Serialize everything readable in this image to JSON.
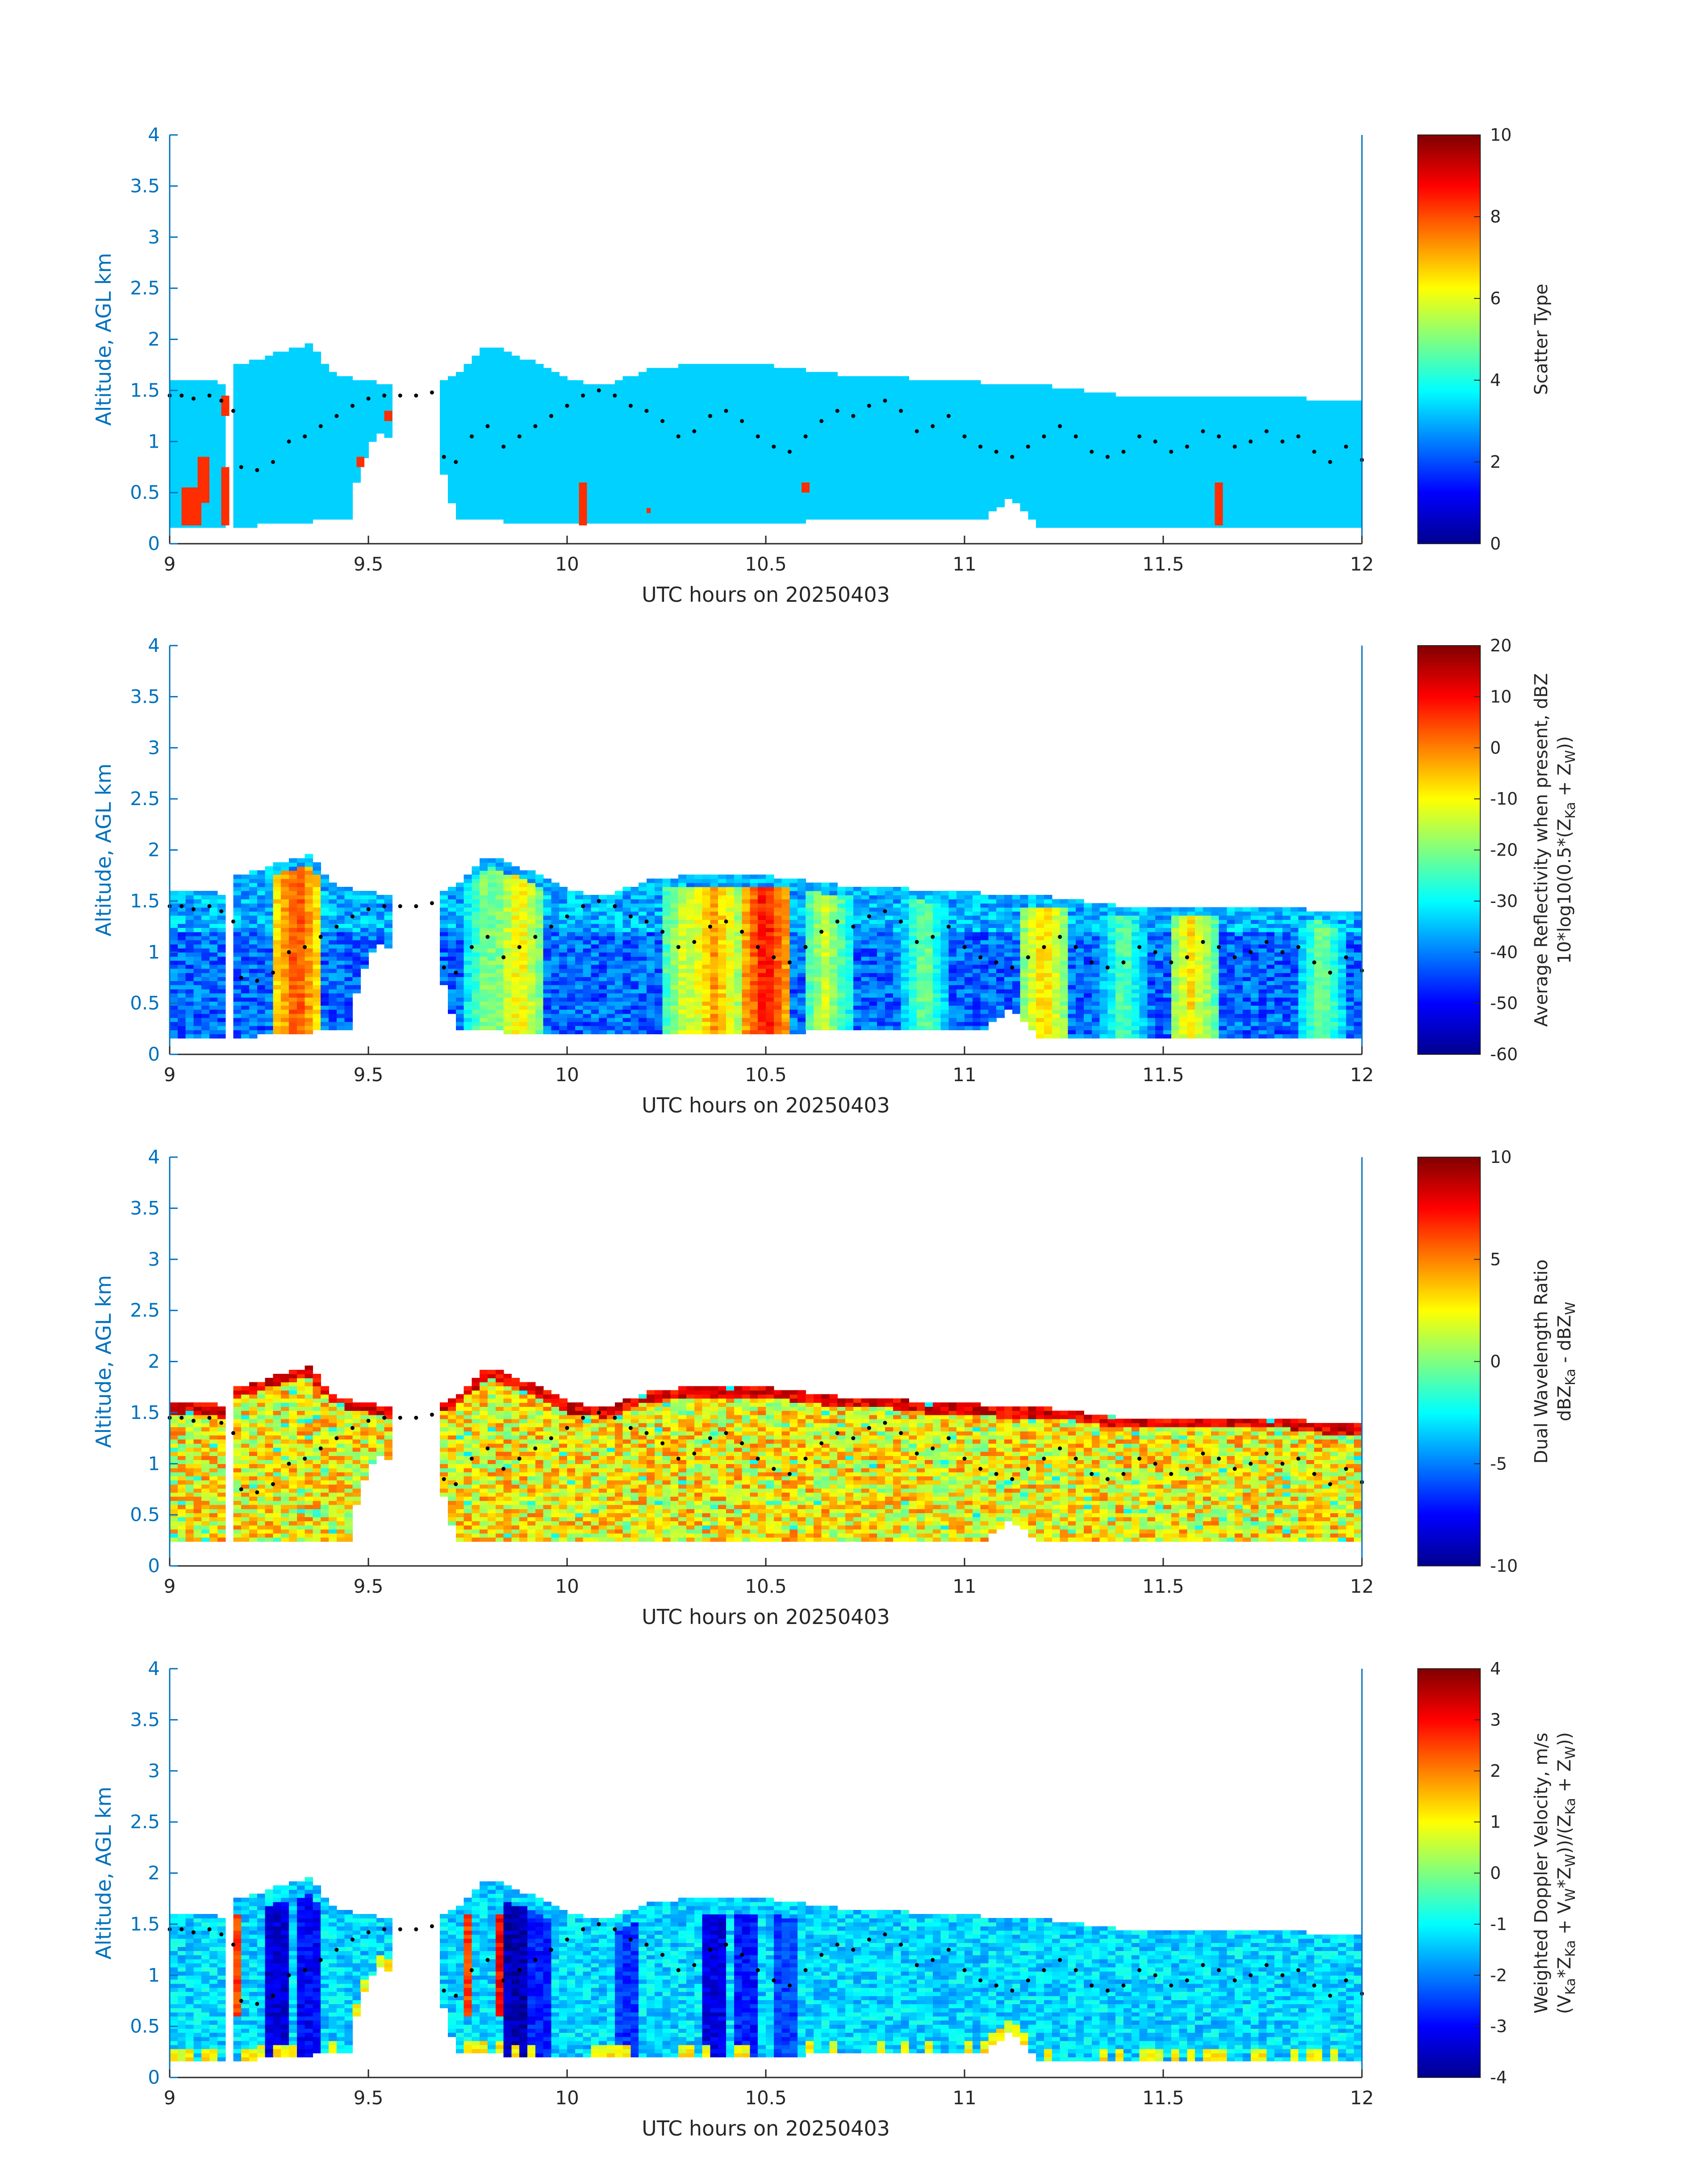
{
  "figure": {
    "xlabel": "UTC hours on 20250403",
    "ylabel": "Altitude, AGL km",
    "xlim": [
      9,
      12
    ],
    "ylim": [
      0,
      4
    ],
    "xticks": [
      "9",
      "9.5",
      "10",
      "10.5",
      "11",
      "11.5",
      "12"
    ],
    "yticks": [
      "0",
      "0.5",
      "1",
      "1.5",
      "2",
      "2.5",
      "3",
      "3.5",
      "4"
    ],
    "colormap": "jet",
    "axis_color": "#0072bd"
  },
  "chart_data": [
    {
      "type": "heatmap",
      "panel": "scatter-type",
      "xlabel": "UTC hours on 20250403",
      "ylabel": "Altitude, AGL km",
      "xlim": [
        9,
        12
      ],
      "ylim": [
        0,
        4
      ],
      "colorbar": {
        "label_lines": [
          "Scatter Type"
        ],
        "clim": [
          0,
          10
        ],
        "ticks": [
          "0",
          "2",
          "4",
          "6",
          "8",
          "10"
        ]
      },
      "base_value": 3.3,
      "cloud_top_km": [
        [
          9.0,
          1.6
        ],
        [
          9.1,
          1.6
        ],
        [
          9.15,
          1.5
        ],
        [
          9.17,
          1.75
        ],
        [
          9.3,
          1.9
        ],
        [
          9.35,
          1.95
        ],
        [
          9.42,
          1.65
        ],
        [
          9.5,
          1.6
        ],
        [
          9.55,
          1.55
        ],
        [
          9.6,
          1.6
        ],
        [
          9.67,
          1.58
        ],
        [
          9.72,
          1.65
        ],
        [
          9.8,
          1.95
        ],
        [
          9.9,
          1.8
        ],
        [
          10.0,
          1.6
        ],
        [
          10.1,
          1.55
        ],
        [
          10.2,
          1.7
        ],
        [
          10.3,
          1.75
        ],
        [
          10.4,
          1.75
        ],
        [
          10.5,
          1.75
        ],
        [
          10.6,
          1.7
        ],
        [
          10.7,
          1.65
        ],
        [
          10.8,
          1.65
        ],
        [
          10.9,
          1.6
        ],
        [
          11.0,
          1.6
        ],
        [
          11.1,
          1.55
        ],
        [
          11.2,
          1.55
        ],
        [
          11.3,
          1.5
        ],
        [
          11.4,
          1.45
        ],
        [
          11.5,
          1.45
        ],
        [
          11.6,
          1.45
        ],
        [
          11.7,
          1.45
        ],
        [
          11.8,
          1.45
        ],
        [
          11.9,
          1.4
        ],
        [
          12.0,
          1.4
        ]
      ],
      "cloud_base_km": [
        [
          9.0,
          0.18
        ],
        [
          9.15,
          0.18
        ],
        [
          9.22,
          0.18
        ],
        [
          9.45,
          0.25
        ],
        [
          9.48,
          0.75
        ],
        [
          9.52,
          1.1
        ],
        [
          9.68,
          0.8
        ],
        [
          9.72,
          0.25
        ],
        [
          10.0,
          0.18
        ],
        [
          11.05,
          0.25
        ],
        [
          11.12,
          0.45
        ],
        [
          11.18,
          0.18
        ],
        [
          12.0,
          0.18
        ]
      ],
      "gaps": [
        [
          9.13,
          9.16
        ],
        [
          9.56,
          9.68
        ]
      ],
      "rain_patches": [
        {
          "x": [
            9.03,
            9.08
          ],
          "y": [
            0.18,
            0.55
          ],
          "value": 8.3
        },
        {
          "x": [
            9.07,
            9.1
          ],
          "y": [
            0.4,
            0.85
          ],
          "value": 8.3
        },
        {
          "x": [
            9.13,
            9.15
          ],
          "y": [
            0.18,
            0.75
          ],
          "value": 8.3
        },
        {
          "x": [
            9.13,
            9.15
          ],
          "y": [
            1.25,
            1.45
          ],
          "value": 8.3
        },
        {
          "x": [
            9.47,
            9.49
          ],
          "y": [
            0.75,
            0.85
          ],
          "value": 8.3
        },
        {
          "x": [
            9.54,
            9.56
          ],
          "y": [
            1.2,
            1.3
          ],
          "value": 8.3
        },
        {
          "x": [
            10.03,
            10.05
          ],
          "y": [
            0.18,
            0.6
          ],
          "value": 8.3
        },
        {
          "x": [
            10.2,
            10.21
          ],
          "y": [
            0.3,
            0.35
          ],
          "value": 8.3
        },
        {
          "x": [
            10.59,
            10.61
          ],
          "y": [
            0.5,
            0.6
          ],
          "value": 8.3
        },
        {
          "x": [
            11.63,
            11.65
          ],
          "y": [
            0.18,
            0.6
          ],
          "value": 8.3
        }
      ]
    },
    {
      "type": "heatmap",
      "panel": "reflectivity",
      "xlabel": "UTC hours on 20250403",
      "ylabel": "Altitude, AGL km",
      "xlim": [
        9,
        12
      ],
      "ylim": [
        0,
        4
      ],
      "colorbar": {
        "label_lines": [
          "Average Reflectivity when present, dBZ",
          "10*log10(0.5*(Z",
          "Ka",
          " + Z",
          "W",
          "))"
        ],
        "clim": [
          -60,
          20
        ],
        "ticks": [
          "-60",
          "-50",
          "-40",
          "-30",
          "-20",
          "-10",
          "0",
          "10",
          "20"
        ]
      },
      "cloud_top_km": [
        [
          9.0,
          1.6
        ],
        [
          9.1,
          1.6
        ],
        [
          9.15,
          1.5
        ],
        [
          9.17,
          1.75
        ],
        [
          9.3,
          1.9
        ],
        [
          9.35,
          1.95
        ],
        [
          9.42,
          1.65
        ],
        [
          9.5,
          1.6
        ],
        [
          9.55,
          1.55
        ],
        [
          9.6,
          1.6
        ],
        [
          9.67,
          1.58
        ],
        [
          9.72,
          1.65
        ],
        [
          9.8,
          1.95
        ],
        [
          9.9,
          1.8
        ],
        [
          10.0,
          1.6
        ],
        [
          10.1,
          1.55
        ],
        [
          10.2,
          1.7
        ],
        [
          10.3,
          1.75
        ],
        [
          10.4,
          1.75
        ],
        [
          10.5,
          1.75
        ],
        [
          10.6,
          1.7
        ],
        [
          10.7,
          1.65
        ],
        [
          10.8,
          1.65
        ],
        [
          10.9,
          1.6
        ],
        [
          11.0,
          1.6
        ],
        [
          11.1,
          1.55
        ],
        [
          11.2,
          1.55
        ],
        [
          11.3,
          1.5
        ],
        [
          11.4,
          1.45
        ],
        [
          11.5,
          1.45
        ],
        [
          11.6,
          1.45
        ],
        [
          11.7,
          1.45
        ],
        [
          11.8,
          1.45
        ],
        [
          11.9,
          1.4
        ],
        [
          12.0,
          1.4
        ]
      ],
      "cloud_base_km": [
        [
          9.0,
          0.18
        ],
        [
          9.15,
          0.18
        ],
        [
          9.22,
          0.18
        ],
        [
          9.45,
          0.25
        ],
        [
          9.48,
          0.75
        ],
        [
          9.52,
          1.1
        ],
        [
          9.68,
          0.8
        ],
        [
          9.72,
          0.25
        ],
        [
          10.0,
          0.18
        ],
        [
          11.05,
          0.25
        ],
        [
          11.12,
          0.45
        ],
        [
          11.18,
          0.18
        ],
        [
          12.0,
          0.18
        ]
      ],
      "gaps": [
        [
          9.13,
          9.16
        ],
        [
          9.56,
          9.68
        ]
      ],
      "cores_dBZ": [
        {
          "x": 9.32,
          "value": 5
        },
        {
          "x": 9.88,
          "value": -8
        },
        {
          "x": 10.37,
          "value": -2
        },
        {
          "x": 10.5,
          "value": 10
        },
        {
          "x": 10.3,
          "value": -12
        },
        {
          "x": 10.65,
          "value": -14
        },
        {
          "x": 11.2,
          "value": -6
        },
        {
          "x": 11.57,
          "value": -8
        },
        {
          "x": 9.8,
          "value": -18
        },
        {
          "x": 10.9,
          "value": -20
        },
        {
          "x": 11.4,
          "value": -22
        },
        {
          "x": 11.9,
          "value": -20
        }
      ],
      "background_dBZ": -42
    },
    {
      "type": "heatmap",
      "panel": "dual-wavelength-ratio",
      "xlabel": "UTC hours on 20250403",
      "ylabel": "Altitude, AGL km",
      "xlim": [
        9,
        12
      ],
      "ylim": [
        0,
        4
      ],
      "colorbar": {
        "label_lines": [
          "Dual Wavelength Ratio",
          "dBZ",
          "Ka",
          " - dBZ",
          "W"
        ],
        "clim": [
          -10,
          10
        ],
        "ticks": [
          "-10",
          "-5",
          "0",
          "5",
          "10"
        ]
      },
      "cloud_top_km": [
        [
          9.0,
          1.6
        ],
        [
          9.1,
          1.6
        ],
        [
          9.15,
          1.5
        ],
        [
          9.17,
          1.75
        ],
        [
          9.3,
          1.9
        ],
        [
          9.35,
          1.95
        ],
        [
          9.42,
          1.65
        ],
        [
          9.5,
          1.6
        ],
        [
          9.55,
          1.55
        ],
        [
          9.6,
          1.6
        ],
        [
          9.67,
          1.58
        ],
        [
          9.72,
          1.65
        ],
        [
          9.8,
          1.95
        ],
        [
          9.9,
          1.8
        ],
        [
          10.0,
          1.6
        ],
        [
          10.1,
          1.55
        ],
        [
          10.2,
          1.7
        ],
        [
          10.3,
          1.75
        ],
        [
          10.4,
          1.75
        ],
        [
          10.5,
          1.75
        ],
        [
          10.6,
          1.7
        ],
        [
          10.7,
          1.65
        ],
        [
          10.8,
          1.65
        ],
        [
          10.9,
          1.6
        ],
        [
          11.0,
          1.6
        ],
        [
          11.1,
          1.55
        ],
        [
          11.2,
          1.55
        ],
        [
          11.3,
          1.5
        ],
        [
          11.4,
          1.45
        ],
        [
          11.5,
          1.45
        ],
        [
          11.6,
          1.45
        ],
        [
          11.7,
          1.45
        ],
        [
          11.8,
          1.45
        ],
        [
          11.9,
          1.4
        ],
        [
          12.0,
          1.4
        ]
      ],
      "cloud_base_km": [
        [
          9.0,
          0.25
        ],
        [
          9.15,
          0.25
        ],
        [
          9.45,
          0.25
        ],
        [
          9.48,
          0.75
        ],
        [
          9.52,
          1.1
        ],
        [
          9.68,
          0.8
        ],
        [
          9.72,
          0.25
        ],
        [
          11.05,
          0.25
        ],
        [
          11.12,
          0.45
        ],
        [
          11.18,
          0.25
        ],
        [
          12.0,
          0.25
        ]
      ],
      "gaps": [
        [
          9.13,
          9.16
        ],
        [
          9.56,
          9.68
        ]
      ],
      "typical_dB": 2.5,
      "top_edge_dB": 8
    },
    {
      "type": "heatmap",
      "panel": "doppler-velocity",
      "xlabel": "UTC hours on 20250403",
      "ylabel": "Altitude, AGL km",
      "xlim": [
        9,
        12
      ],
      "ylim": [
        0,
        4
      ],
      "colorbar": {
        "label_lines": [
          "Weighted Doppler Velocity, m/s",
          "(V",
          "Ka",
          "*Z",
          "Ka",
          " + V",
          "W",
          "*Z",
          "W",
          "))/(Z",
          "Ka",
          " + Z",
          "W",
          "))"
        ],
        "clim": [
          -4,
          4
        ],
        "ticks": [
          "-4",
          "-3",
          "-2",
          "-1",
          "0",
          "1",
          "2",
          "3",
          "4"
        ]
      },
      "cloud_top_km": [
        [
          9.0,
          1.6
        ],
        [
          9.1,
          1.6
        ],
        [
          9.15,
          1.5
        ],
        [
          9.17,
          1.75
        ],
        [
          9.3,
          1.9
        ],
        [
          9.35,
          1.95
        ],
        [
          9.42,
          1.65
        ],
        [
          9.5,
          1.6
        ],
        [
          9.55,
          1.55
        ],
        [
          9.6,
          1.6
        ],
        [
          9.67,
          1.58
        ],
        [
          9.72,
          1.65
        ],
        [
          9.8,
          1.95
        ],
        [
          9.9,
          1.8
        ],
        [
          10.0,
          1.6
        ],
        [
          10.1,
          1.55
        ],
        [
          10.2,
          1.7
        ],
        [
          10.3,
          1.75
        ],
        [
          10.4,
          1.75
        ],
        [
          10.5,
          1.75
        ],
        [
          10.6,
          1.7
        ],
        [
          10.7,
          1.65
        ],
        [
          10.8,
          1.65
        ],
        [
          10.9,
          1.6
        ],
        [
          11.0,
          1.6
        ],
        [
          11.1,
          1.55
        ],
        [
          11.2,
          1.55
        ],
        [
          11.3,
          1.5
        ],
        [
          11.4,
          1.45
        ],
        [
          11.5,
          1.45
        ],
        [
          11.6,
          1.45
        ],
        [
          11.7,
          1.45
        ],
        [
          11.8,
          1.45
        ],
        [
          11.9,
          1.4
        ],
        [
          12.0,
          1.4
        ]
      ],
      "cloud_base_km": [
        [
          9.0,
          0.18
        ],
        [
          9.15,
          0.18
        ],
        [
          9.22,
          0.18
        ],
        [
          9.45,
          0.25
        ],
        [
          9.48,
          0.75
        ],
        [
          9.52,
          1.1
        ],
        [
          9.68,
          0.8
        ],
        [
          9.72,
          0.25
        ],
        [
          10.0,
          0.18
        ],
        [
          11.05,
          0.25
        ],
        [
          11.12,
          0.45
        ],
        [
          11.18,
          0.18
        ],
        [
          12.0,
          0.18
        ]
      ],
      "gaps": [
        [
          9.13,
          9.16
        ],
        [
          9.56,
          9.68
        ]
      ],
      "typical_ms": -1.3,
      "fall_streaks_ms": [
        {
          "x": 9.27,
          "value": -3.3
        },
        {
          "x": 9.35,
          "value": -3.0
        },
        {
          "x": 9.87,
          "value": -3.6
        },
        {
          "x": 9.93,
          "value": -2.8
        },
        {
          "x": 10.15,
          "value": -2.6
        },
        {
          "x": 10.37,
          "value": -3.2
        },
        {
          "x": 10.45,
          "value": -2.8
        },
        {
          "x": 10.55,
          "value": -2.5
        }
      ],
      "updrafts_ms": [
        {
          "x": 9.17,
          "value": 2.5
        },
        {
          "x": 9.75,
          "value": 2.5
        },
        {
          "x": 9.83,
          "value": 3.0
        }
      ]
    }
  ],
  "cloud_base_dots_km": [
    [
      9.0,
      1.45
    ],
    [
      9.03,
      1.45
    ],
    [
      9.06,
      1.42
    ],
    [
      9.1,
      1.45
    ],
    [
      9.13,
      1.4
    ],
    [
      9.16,
      1.3
    ],
    [
      9.18,
      0.75
    ],
    [
      9.22,
      0.72
    ],
    [
      9.26,
      0.8
    ],
    [
      9.3,
      1.0
    ],
    [
      9.34,
      1.05
    ],
    [
      9.38,
      1.15
    ],
    [
      9.42,
      1.25
    ],
    [
      9.46,
      1.35
    ],
    [
      9.5,
      1.42
    ],
    [
      9.54,
      1.45
    ],
    [
      9.58,
      1.45
    ],
    [
      9.62,
      1.45
    ],
    [
      9.66,
      1.48
    ],
    [
      9.69,
      0.85
    ],
    [
      9.72,
      0.8
    ],
    [
      9.76,
      1.05
    ],
    [
      9.8,
      1.15
    ],
    [
      9.84,
      0.95
    ],
    [
      9.88,
      1.05
    ],
    [
      9.92,
      1.15
    ],
    [
      9.96,
      1.25
    ],
    [
      10.0,
      1.35
    ],
    [
      10.04,
      1.45
    ],
    [
      10.08,
      1.5
    ],
    [
      10.12,
      1.45
    ],
    [
      10.16,
      1.35
    ],
    [
      10.2,
      1.3
    ],
    [
      10.24,
      1.2
    ],
    [
      10.28,
      1.05
    ],
    [
      10.32,
      1.1
    ],
    [
      10.36,
      1.25
    ],
    [
      10.4,
      1.3
    ],
    [
      10.44,
      1.2
    ],
    [
      10.48,
      1.05
    ],
    [
      10.52,
      0.95
    ],
    [
      10.56,
      0.9
    ],
    [
      10.6,
      1.05
    ],
    [
      10.64,
      1.2
    ],
    [
      10.68,
      1.3
    ],
    [
      10.72,
      1.25
    ],
    [
      10.76,
      1.35
    ],
    [
      10.8,
      1.4
    ],
    [
      10.84,
      1.3
    ],
    [
      10.88,
      1.1
    ],
    [
      10.92,
      1.15
    ],
    [
      10.96,
      1.25
    ],
    [
      11.0,
      1.05
    ],
    [
      11.04,
      0.95
    ],
    [
      11.08,
      0.9
    ],
    [
      11.12,
      0.85
    ],
    [
      11.16,
      0.95
    ],
    [
      11.2,
      1.05
    ],
    [
      11.24,
      1.15
    ],
    [
      11.28,
      1.05
    ],
    [
      11.32,
      0.9
    ],
    [
      11.36,
      0.85
    ],
    [
      11.4,
      0.9
    ],
    [
      11.44,
      1.05
    ],
    [
      11.48,
      1.0
    ],
    [
      11.52,
      0.9
    ],
    [
      11.56,
      0.95
    ],
    [
      11.6,
      1.1
    ],
    [
      11.64,
      1.05
    ],
    [
      11.68,
      0.95
    ],
    [
      11.72,
      1.0
    ],
    [
      11.76,
      1.1
    ],
    [
      11.8,
      1.0
    ],
    [
      11.84,
      1.05
    ],
    [
      11.88,
      0.9
    ],
    [
      11.92,
      0.8
    ],
    [
      11.96,
      0.95
    ],
    [
      12.0,
      0.82
    ]
  ]
}
